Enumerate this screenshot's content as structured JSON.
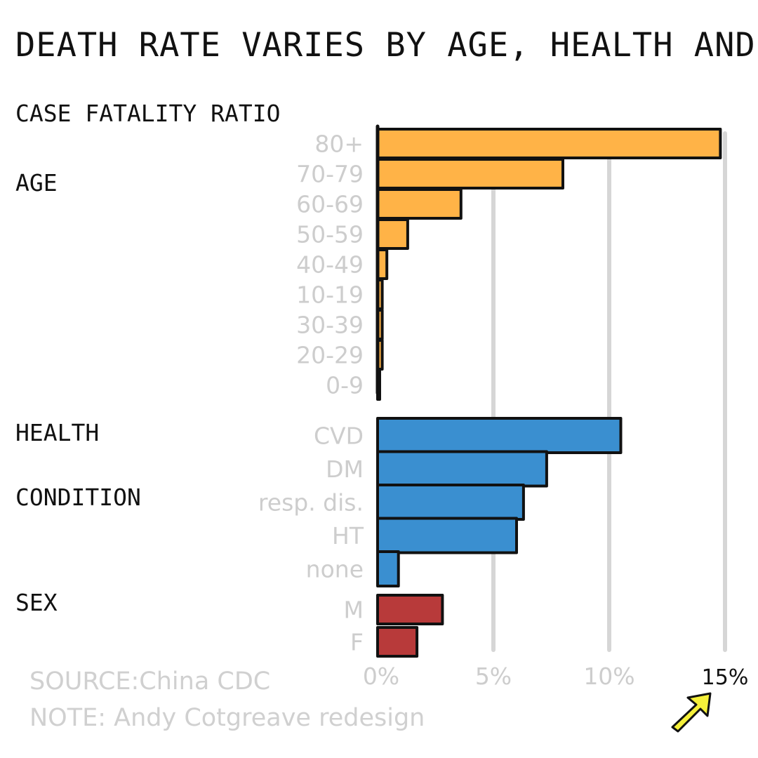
{
  "chart_data": {
    "type": "bar",
    "orientation": "horizontal",
    "title": "DEATH RATE VARIES BY AGE, HEALTH AND SEX",
    "subtitle": "CASE FATALITY RATIO",
    "xlim": [
      0,
      16
    ],
    "grid": true,
    "x_ticks": [
      "0%",
      "5%",
      "10%",
      "15%"
    ],
    "x_tick_values": [
      0,
      5,
      10,
      15
    ],
    "groups": [
      {
        "label": "AGE",
        "color": "#ffb347",
        "categories": [
          "80+",
          "70-79",
          "60-69",
          "50-59",
          "40-49",
          "10-19",
          "30-39",
          "20-29",
          "0-9"
        ],
        "values": [
          14.8,
          8.0,
          3.6,
          1.3,
          0.4,
          0.2,
          0.2,
          0.2,
          0.0
        ]
      },
      {
        "label": "HEALTH CONDITION",
        "label_lines": [
          "HEALTH",
          "CONDITION"
        ],
        "color": "#3a8fd0",
        "categories": [
          "CVD",
          "DM",
          "resp. dis.",
          "HT",
          "none"
        ],
        "values": [
          10.5,
          7.3,
          6.3,
          6.0,
          0.9
        ]
      },
      {
        "label": "SEX",
        "color": "#b83a3a",
        "categories": [
          "M",
          "F"
        ],
        "values": [
          2.8,
          1.7
        ]
      }
    ],
    "annotations": {
      "source": "SOURCE:China CDC",
      "note": "NOTE: Andy Cotgreave redesign",
      "arrow_color": "#f5f03a"
    }
  }
}
